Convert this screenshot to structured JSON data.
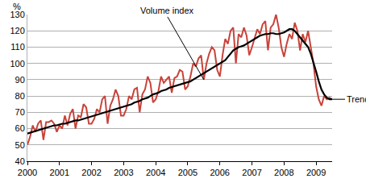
{
  "chart_data": {
    "type": "line",
    "ylabel": "%",
    "categories": [
      "2000",
      null,
      null,
      null,
      null,
      null,
      null,
      null,
      null,
      null,
      null,
      null,
      "2001",
      null,
      null,
      null,
      null,
      null,
      null,
      null,
      null,
      null,
      null,
      null,
      "2002",
      null,
      null,
      null,
      null,
      null,
      null,
      null,
      null,
      null,
      null,
      null,
      "2003",
      null,
      null,
      null,
      null,
      null,
      null,
      null,
      null,
      null,
      null,
      null,
      "2004",
      null,
      null,
      null,
      null,
      null,
      null,
      null,
      null,
      null,
      null,
      null,
      "2005",
      null,
      null,
      null,
      null,
      null,
      null,
      null,
      null,
      null,
      null,
      null,
      "2006",
      null,
      null,
      null,
      null,
      null,
      null,
      null,
      null,
      null,
      null,
      null,
      "2007",
      null,
      null,
      null,
      null,
      null,
      null,
      null,
      null,
      null,
      null,
      null,
      "2008",
      null,
      null,
      null,
      null,
      null,
      null,
      null,
      null,
      null,
      null,
      null,
      "2009",
      null,
      null,
      null,
      null,
      null,
      null
    ],
    "series": [
      {
        "name": "Volume index",
        "color": "#c8433a",
        "values": [
          50,
          55,
          62,
          58,
          63,
          65,
          53,
          64,
          64,
          65,
          63,
          58,
          62,
          60,
          68,
          62,
          69,
          72,
          60,
          68,
          67,
          75,
          73,
          63,
          63,
          66,
          72,
          70,
          78,
          80,
          63,
          74,
          78,
          84,
          80,
          68,
          68,
          72,
          80,
          78,
          84,
          85,
          70,
          81,
          84,
          92,
          88,
          76,
          78,
          83,
          92,
          88,
          90,
          92,
          82,
          91,
          92,
          96,
          95,
          84,
          86,
          92,
          100,
          98,
          103,
          105,
          90,
          100,
          106,
          110,
          108,
          96,
          92,
          105,
          115,
          112,
          120,
          122,
          100,
          118,
          116,
          122,
          117,
          105,
          110,
          115,
          121,
          118,
          124,
          126,
          108,
          122,
          124,
          130,
          122,
          110,
          104,
          112,
          118,
          115,
          125,
          120,
          108,
          118,
          113,
          120,
          110,
          100,
          86,
          78,
          74,
          80,
          78,
          79,
          78
        ]
      },
      {
        "name": "Trend",
        "color": "#000000",
        "values": [
          57,
          57.5,
          58,
          58.5,
          59,
          59.5,
          60,
          60.5,
          61,
          61.5,
          62,
          62,
          62.5,
          63,
          63,
          63.5,
          64,
          64.5,
          65,
          65,
          65.5,
          66,
          66.5,
          67,
          67.5,
          68,
          68.5,
          69,
          69.5,
          70,
          70.5,
          71,
          71.5,
          72,
          72.5,
          73,
          73.5,
          74,
          74.5,
          75,
          76,
          76.5,
          77,
          78,
          78.5,
          79,
          80,
          81,
          81.5,
          82,
          83,
          83.5,
          84,
          85,
          85.5,
          86,
          86.5,
          87,
          87.5,
          88,
          88.5,
          89,
          90,
          91,
          92,
          93,
          94,
          95,
          96,
          97,
          98,
          99,
          100,
          101,
          102,
          104,
          106,
          108,
          109,
          110,
          110.5,
          111,
          112,
          113,
          114,
          115,
          116,
          117,
          117.5,
          118,
          118,
          118.5,
          118.5,
          118,
          118,
          118.5,
          119,
          120,
          121,
          121,
          120,
          118,
          116,
          114,
          112,
          110,
          106,
          101,
          95,
          89,
          84,
          81,
          79,
          78,
          78
        ]
      }
    ],
    "ylim": [
      40,
      130
    ],
    "yticks": [
      40,
      50,
      60,
      70,
      80,
      90,
      100,
      110,
      120,
      130
    ],
    "grid": true
  }
}
